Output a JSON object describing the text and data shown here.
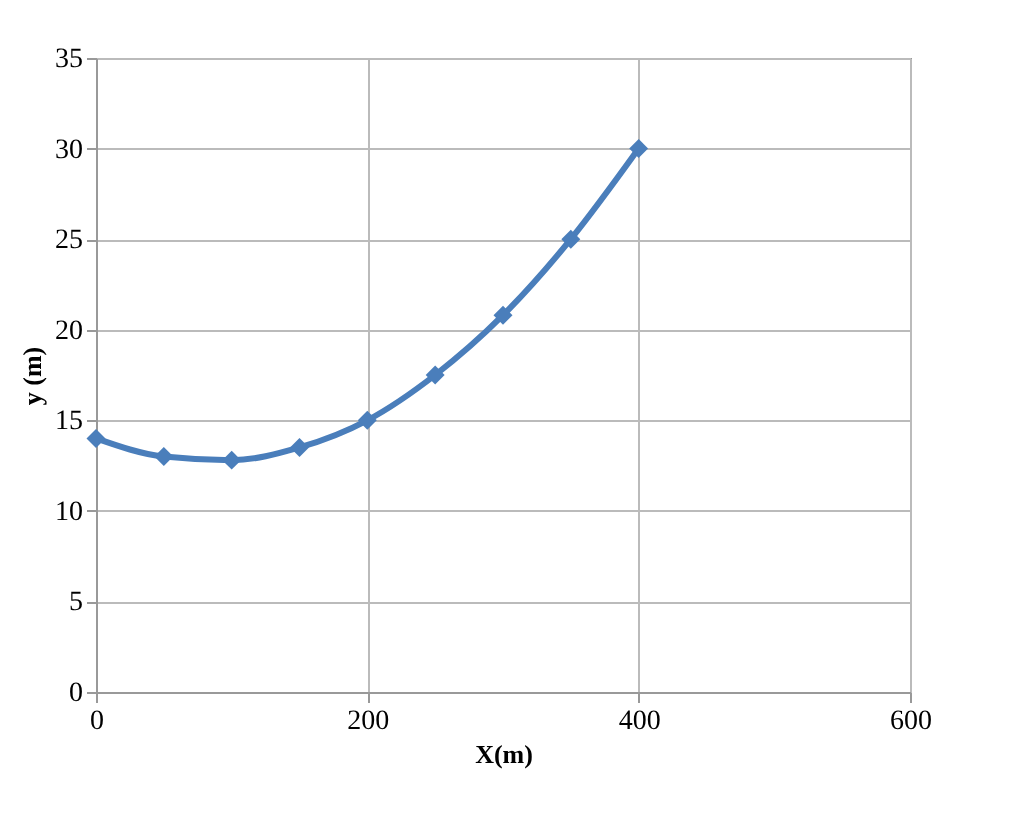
{
  "chart_data": {
    "type": "line",
    "xlabel": "X(m)",
    "ylabel": "y (m)",
    "x": [
      0,
      50,
      100,
      150,
      200,
      250,
      300,
      350,
      400
    ],
    "series": [
      {
        "color": "#4a7ebb",
        "values": [
          14,
          13,
          12.8,
          13.5,
          15,
          17.5,
          20.8,
          25,
          30
        ]
      }
    ],
    "xlim": [
      0,
      600
    ],
    "xticks": [
      0,
      200,
      400,
      600
    ],
    "ylim": [
      0,
      35
    ],
    "yticks": [
      0,
      5,
      10,
      15,
      20,
      25,
      30,
      35
    ],
    "grid": true,
    "marker": "diamond",
    "line_style": "solid"
  }
}
